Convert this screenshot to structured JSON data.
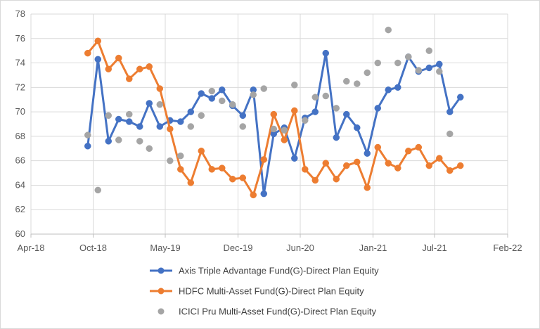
{
  "chart_data": {
    "type": "scatter",
    "title": "",
    "xlabel": "",
    "ylabel": "",
    "x_axis": {
      "type": "date",
      "range": [
        "2018-04-01",
        "2022-02-01"
      ],
      "ticks": [
        {
          "date": "2018-04-01",
          "label": "Apr-18"
        },
        {
          "date": "2018-10-01",
          "label": "Oct-18"
        },
        {
          "date": "2019-05-01",
          "label": "May-19"
        },
        {
          "date": "2019-12-01",
          "label": "Dec-19"
        },
        {
          "date": "2020-06-01",
          "label": "Jun-20"
        },
        {
          "date": "2021-01-01",
          "label": "Jan-21"
        },
        {
          "date": "2021-07-01",
          "label": "Jul-21"
        },
        {
          "date": "2022-02-01",
          "label": "Feb-22"
        }
      ]
    },
    "y_axis": {
      "range": [
        60,
        78
      ],
      "ticks": [
        60,
        62,
        64,
        66,
        68,
        70,
        72,
        74,
        76,
        78
      ]
    },
    "grid": "horizontal and vertical gridlines",
    "legend_position": "bottom",
    "series": [
      {
        "name": "Axis Triple Advantage Fund(G)-Direct Plan Equity",
        "color": "#4472C4",
        "style": "line-markers",
        "points": [
          [
            "2018-09-15",
            67.2
          ],
          [
            "2018-10-15",
            74.3
          ],
          [
            "2018-11-15",
            67.6
          ],
          [
            "2018-12-15",
            69.4
          ],
          [
            "2019-01-15",
            69.2
          ],
          [
            "2019-02-15",
            68.8
          ],
          [
            "2019-03-15",
            70.7
          ],
          [
            "2019-04-15",
            68.8
          ],
          [
            "2019-05-15",
            69.3
          ],
          [
            "2019-06-15",
            69.2
          ],
          [
            "2019-07-15",
            70.0
          ],
          [
            "2019-08-15",
            71.5
          ],
          [
            "2019-09-15",
            71.1
          ],
          [
            "2019-10-15",
            71.8
          ],
          [
            "2019-11-15",
            70.5
          ],
          [
            "2019-12-15",
            69.7
          ],
          [
            "2020-01-15",
            71.8
          ],
          [
            "2020-02-15",
            63.3
          ],
          [
            "2020-03-15",
            68.2
          ],
          [
            "2020-04-15",
            68.7
          ],
          [
            "2020-05-15",
            66.2
          ],
          [
            "2020-06-15",
            69.5
          ],
          [
            "2020-07-15",
            70.0
          ],
          [
            "2020-08-15",
            74.8
          ],
          [
            "2020-09-15",
            67.9
          ],
          [
            "2020-10-15",
            69.8
          ],
          [
            "2020-11-15",
            68.7
          ],
          [
            "2020-12-15",
            66.6
          ],
          [
            "2021-01-15",
            70.3
          ],
          [
            "2021-02-15",
            71.8
          ],
          [
            "2021-03-15",
            72.0
          ],
          [
            "2021-04-15",
            74.5
          ],
          [
            "2021-05-15",
            73.3
          ],
          [
            "2021-06-15",
            73.6
          ],
          [
            "2021-07-15",
            73.9
          ],
          [
            "2021-08-15",
            70.0
          ],
          [
            "2021-09-15",
            71.2
          ]
        ]
      },
      {
        "name": "HDFC Multi-Asset Fund(G)-Direct Plan Equity",
        "color": "#ED7D31",
        "style": "line-markers",
        "points": [
          [
            "2018-09-15",
            74.8
          ],
          [
            "2018-10-15",
            75.8
          ],
          [
            "2018-11-15",
            73.5
          ],
          [
            "2018-12-15",
            74.4
          ],
          [
            "2019-01-15",
            72.7
          ],
          [
            "2019-02-15",
            73.5
          ],
          [
            "2019-03-15",
            73.7
          ],
          [
            "2019-04-15",
            71.9
          ],
          [
            "2019-05-15",
            68.6
          ],
          [
            "2019-06-15",
            65.3
          ],
          [
            "2019-07-15",
            64.2
          ],
          [
            "2019-08-15",
            66.8
          ],
          [
            "2019-09-15",
            65.3
          ],
          [
            "2019-10-15",
            65.4
          ],
          [
            "2019-11-15",
            64.5
          ],
          [
            "2019-12-15",
            64.6
          ],
          [
            "2020-01-15",
            63.2
          ],
          [
            "2020-02-15",
            66.1
          ],
          [
            "2020-03-15",
            69.8
          ],
          [
            "2020-04-15",
            67.7
          ],
          [
            "2020-05-15",
            70.1
          ],
          [
            "2020-06-15",
            65.3
          ],
          [
            "2020-07-15",
            64.4
          ],
          [
            "2020-08-15",
            65.8
          ],
          [
            "2020-09-15",
            64.5
          ],
          [
            "2020-10-15",
            65.6
          ],
          [
            "2020-11-15",
            65.9
          ],
          [
            "2020-12-15",
            63.8
          ],
          [
            "2021-01-15",
            67.1
          ],
          [
            "2021-02-15",
            65.8
          ],
          [
            "2021-03-15",
            65.4
          ],
          [
            "2021-04-15",
            66.8
          ],
          [
            "2021-05-15",
            67.1
          ],
          [
            "2021-06-15",
            65.6
          ],
          [
            "2021-07-15",
            66.2
          ],
          [
            "2021-08-15",
            65.2
          ],
          [
            "2021-09-15",
            65.6
          ]
        ]
      },
      {
        "name": "ICICI Pru Multi-Asset Fund(G)-Direct Plan Equity",
        "color": "#A5A5A5",
        "style": "markers",
        "points": [
          [
            "2018-09-15",
            68.1
          ],
          [
            "2018-10-15",
            63.6
          ],
          [
            "2018-11-15",
            69.7
          ],
          [
            "2018-12-15",
            67.7
          ],
          [
            "2019-01-15",
            69.8
          ],
          [
            "2019-02-15",
            67.6
          ],
          [
            "2019-03-15",
            67.0
          ],
          [
            "2019-04-15",
            70.6
          ],
          [
            "2019-05-15",
            66.0
          ],
          [
            "2019-06-15",
            66.4
          ],
          [
            "2019-07-15",
            68.8
          ],
          [
            "2019-08-15",
            69.7
          ],
          [
            "2019-09-15",
            71.7
          ],
          [
            "2019-10-15",
            70.9
          ],
          [
            "2019-11-15",
            70.6
          ],
          [
            "2019-12-15",
            68.8
          ],
          [
            "2020-01-15",
            71.4
          ],
          [
            "2020-02-15",
            71.9
          ],
          [
            "2020-03-15",
            68.6
          ],
          [
            "2020-04-15",
            68.5
          ],
          [
            "2020-05-15",
            72.2
          ],
          [
            "2020-06-15",
            69.3
          ],
          [
            "2020-07-15",
            71.2
          ],
          [
            "2020-08-15",
            71.3
          ],
          [
            "2020-09-15",
            70.3
          ],
          [
            "2020-10-15",
            72.5
          ],
          [
            "2020-11-15",
            72.3
          ],
          [
            "2020-12-15",
            73.2
          ],
          [
            "2021-01-15",
            74.0
          ],
          [
            "2021-02-15",
            76.7
          ],
          [
            "2021-03-15",
            74.0
          ],
          [
            "2021-04-15",
            74.5
          ],
          [
            "2021-05-15",
            73.4
          ],
          [
            "2021-06-15",
            75.0
          ],
          [
            "2021-07-15",
            73.3
          ],
          [
            "2021-08-15",
            68.2
          ]
        ]
      }
    ]
  }
}
